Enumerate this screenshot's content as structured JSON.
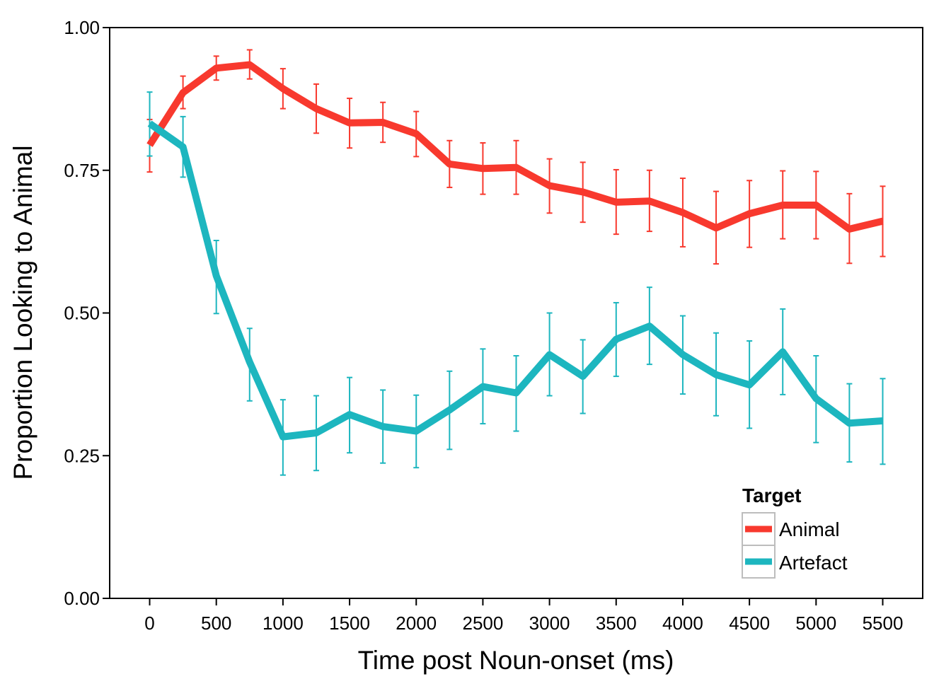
{
  "chart_data": {
    "type": "line",
    "xlabel": "Time post Noun-onset (ms)",
    "ylabel": "Proportion Looking to Animal",
    "xlim": [
      -300,
      5800
    ],
    "ylim": [
      0,
      1
    ],
    "x_ticks": [
      0,
      500,
      1000,
      1500,
      2000,
      2500,
      3000,
      3500,
      4000,
      4500,
      5000,
      5500
    ],
    "y_ticks": [
      0,
      0.25,
      0.5,
      0.75,
      1
    ],
    "y_tick_labels": [
      "0.00",
      "0.25",
      "0.50",
      "0.75",
      "1.00"
    ],
    "x": [
      0,
      250,
      500,
      750,
      1000,
      1250,
      1500,
      1750,
      2000,
      2250,
      2500,
      2750,
      3000,
      3250,
      3500,
      3750,
      4000,
      4250,
      4500,
      4750,
      5000,
      5250,
      5500
    ],
    "series": [
      {
        "name": "Animal",
        "color": "#F8392E",
        "values": [
          0.794,
          0.886,
          0.929,
          0.935,
          0.893,
          0.858,
          0.833,
          0.834,
          0.814,
          0.761,
          0.753,
          0.755,
          0.723,
          0.712,
          0.694,
          0.696,
          0.676,
          0.649,
          0.674,
          0.689,
          0.689,
          0.647,
          0.661
        ],
        "err_low": [
          0.747,
          0.858,
          0.908,
          0.91,
          0.858,
          0.815,
          0.789,
          0.799,
          0.774,
          0.72,
          0.708,
          0.708,
          0.675,
          0.659,
          0.638,
          0.643,
          0.616,
          0.586,
          0.615,
          0.63,
          0.63,
          0.587,
          0.599
        ],
        "err_high": [
          0.839,
          0.915,
          0.95,
          0.961,
          0.928,
          0.901,
          0.876,
          0.869,
          0.853,
          0.802,
          0.798,
          0.802,
          0.77,
          0.764,
          0.751,
          0.75,
          0.736,
          0.713,
          0.732,
          0.749,
          0.748,
          0.709,
          0.722
        ]
      },
      {
        "name": "Artefact",
        "color": "#1DB6BF",
        "values": [
          0.832,
          0.791,
          0.565,
          0.414,
          0.283,
          0.29,
          0.322,
          0.301,
          0.293,
          0.33,
          0.371,
          0.36,
          0.427,
          0.389,
          0.454,
          0.477,
          0.427,
          0.392,
          0.374,
          0.432,
          0.35,
          0.307,
          0.311
        ],
        "err_low": [
          0.775,
          0.738,
          0.499,
          0.346,
          0.216,
          0.224,
          0.255,
          0.237,
          0.229,
          0.261,
          0.306,
          0.293,
          0.355,
          0.324,
          0.389,
          0.41,
          0.358,
          0.32,
          0.298,
          0.357,
          0.273,
          0.239,
          0.235
        ],
        "err_high": [
          0.887,
          0.844,
          0.627,
          0.473,
          0.348,
          0.355,
          0.387,
          0.365,
          0.356,
          0.398,
          0.437,
          0.425,
          0.5,
          0.453,
          0.518,
          0.545,
          0.495,
          0.465,
          0.451,
          0.507,
          0.425,
          0.376,
          0.385
        ]
      }
    ],
    "legend": {
      "title": "Target",
      "position": "bottom-right",
      "items": [
        "Animal",
        "Artefact"
      ]
    },
    "grid": false
  }
}
